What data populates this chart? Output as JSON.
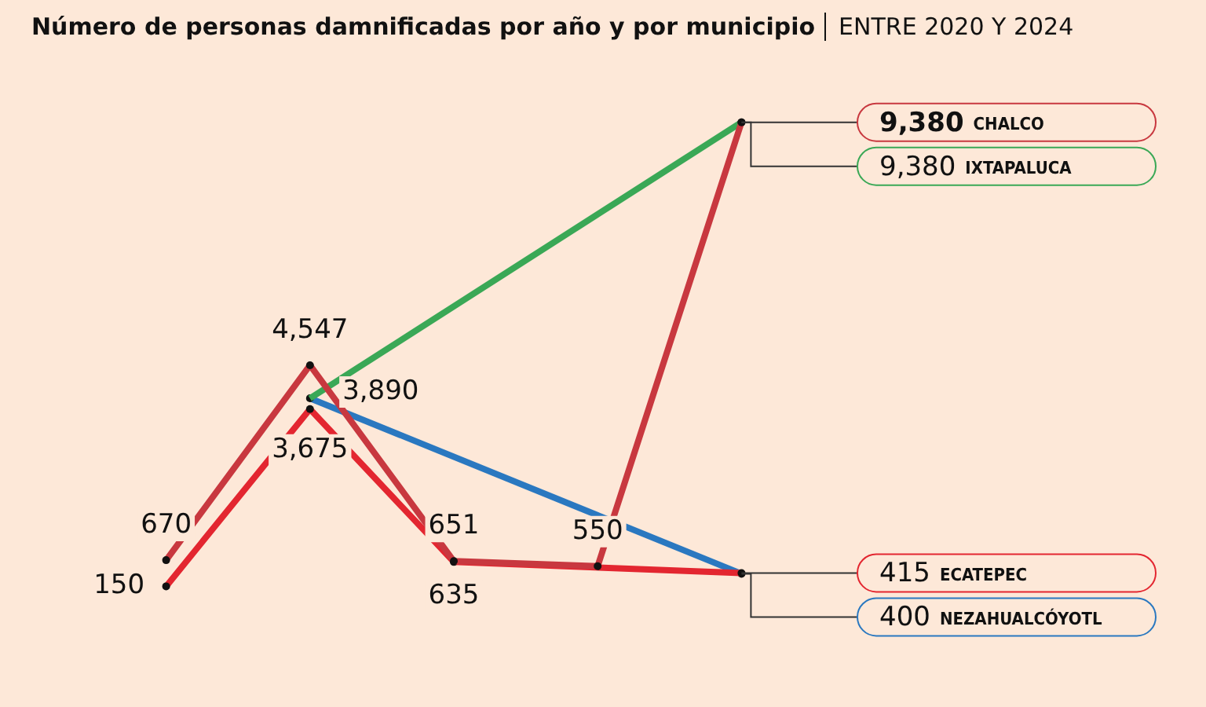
{
  "chart_data": {
    "type": "line",
    "title": "Número de personas damnificadas por año y por municipio",
    "subtitle": "ENTRE 2020 Y 2024",
    "categories": [
      null,
      null,
      null,
      null,
      null
    ],
    "legend": false,
    "marker": "circle",
    "line_style": "solid",
    "series": [
      {
        "name": "CHALCO",
        "color": "#c8383f",
        "values": [
          670,
          4547,
          651,
          550,
          9380
        ],
        "value_labels": [
          "670",
          "4,547",
          "651",
          "550",
          "9,380"
        ]
      },
      {
        "name": "IXTAPALUCA",
        "color": "#3aa856",
        "values": [
          null,
          3890,
          null,
          null,
          9380
        ],
        "value_labels": [
          null,
          null,
          null,
          null,
          "9,380"
        ]
      },
      {
        "name": "ECATEPEC",
        "color": "#e32630",
        "values": [
          150,
          3675,
          635,
          null,
          415
        ],
        "value_labels": [
          "150",
          "3,675",
          "635",
          null,
          "415"
        ]
      },
      {
        "name": "NEZAHUALCÓYOTL",
        "color": "#2a78c0",
        "values": [
          null,
          3890,
          null,
          null,
          400
        ],
        "value_labels": [
          null,
          "3,890",
          null,
          null,
          "400"
        ]
      }
    ]
  }
}
